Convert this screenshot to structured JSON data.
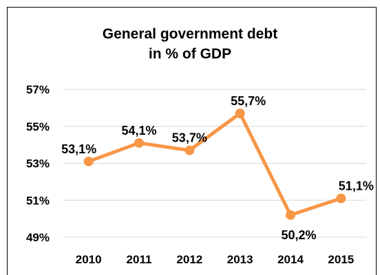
{
  "chart_data": {
    "type": "line",
    "title_lines": [
      "General government debt",
      "in % of GDP"
    ],
    "categories": [
      "2010",
      "2011",
      "2012",
      "2013",
      "2014",
      "2015"
    ],
    "series": [
      {
        "values": [
          53.1,
          54.1,
          53.7,
          55.7,
          50.2,
          51.1
        ],
        "labels": [
          "53,1%",
          "54,1%",
          "53,7%",
          "55,7%",
          "50,2%",
          "51,1%"
        ],
        "color": "#F79646"
      }
    ],
    "y_ticks": [
      49,
      51,
      53,
      55,
      57
    ],
    "y_tick_labels": [
      "49%",
      "51%",
      "53%",
      "55%",
      "57%"
    ],
    "ylim": [
      49,
      57
    ],
    "grid": true,
    "grid_color": "#D9D9D9",
    "legend": "none"
  }
}
